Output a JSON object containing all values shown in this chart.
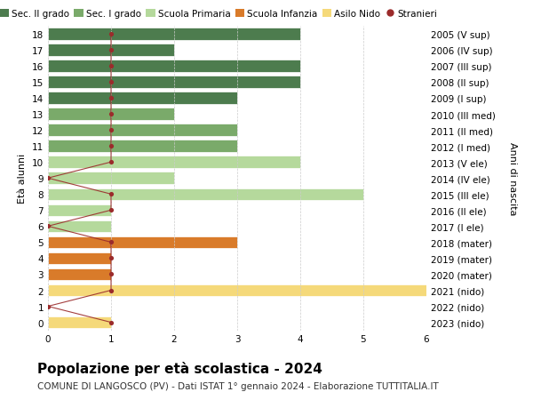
{
  "ages": [
    18,
    17,
    16,
    15,
    14,
    13,
    12,
    11,
    10,
    9,
    8,
    7,
    6,
    5,
    4,
    3,
    2,
    1,
    0
  ],
  "years": [
    "2005 (V sup)",
    "2006 (IV sup)",
    "2007 (III sup)",
    "2008 (II sup)",
    "2009 (I sup)",
    "2010 (III med)",
    "2011 (II med)",
    "2012 (I med)",
    "2013 (V ele)",
    "2014 (IV ele)",
    "2015 (III ele)",
    "2016 (II ele)",
    "2017 (I ele)",
    "2018 (mater)",
    "2019 (mater)",
    "2020 (mater)",
    "2021 (nido)",
    "2022 (nido)",
    "2023 (nido)"
  ],
  "bar_values": [
    4,
    2,
    4,
    4,
    3,
    2,
    3,
    3,
    4,
    2,
    5,
    1,
    1,
    3,
    1,
    1,
    6,
    0,
    1
  ],
  "bar_colors": [
    "#4d7c4e",
    "#4d7c4e",
    "#4d7c4e",
    "#4d7c4e",
    "#4d7c4e",
    "#7aaa6a",
    "#7aaa6a",
    "#7aaa6a",
    "#b5d99c",
    "#b5d99c",
    "#b5d99c",
    "#b5d99c",
    "#b5d99c",
    "#d97b2a",
    "#d97b2a",
    "#d97b2a",
    "#f5d97a",
    "#f5d97a",
    "#f5d97a"
  ],
  "stranieri_values": [
    1,
    1,
    1,
    1,
    1,
    1,
    1,
    1,
    1,
    0,
    1,
    1,
    0,
    1,
    1,
    1,
    1,
    0,
    1
  ],
  "stranieri_color": "#9b2b2b",
  "xlim": [
    0,
    6
  ],
  "ylabel": "Età alunni",
  "right_ylabel": "Anni di nascita",
  "title": "Popolazione per età scolastica - 2024",
  "subtitle": "COMUNE DI LANGOSCO (PV) - Dati ISTAT 1° gennaio 2024 - Elaborazione TUTTITALIA.IT",
  "legend_labels": [
    "Sec. II grado",
    "Sec. I grado",
    "Scuola Primaria",
    "Scuola Infanzia",
    "Asilo Nido",
    "Stranieri"
  ],
  "legend_colors": [
    "#4d7c4e",
    "#7aaa6a",
    "#b5d99c",
    "#d97b2a",
    "#f5d97a",
    "#9b2b2b"
  ],
  "bg_color": "#ffffff",
  "grid_color": "#cccccc",
  "bar_height": 0.75,
  "title_fontsize": 11,
  "subtitle_fontsize": 7.5,
  "tick_fontsize": 7.5,
  "label_fontsize": 8,
  "legend_fontsize": 7.5
}
